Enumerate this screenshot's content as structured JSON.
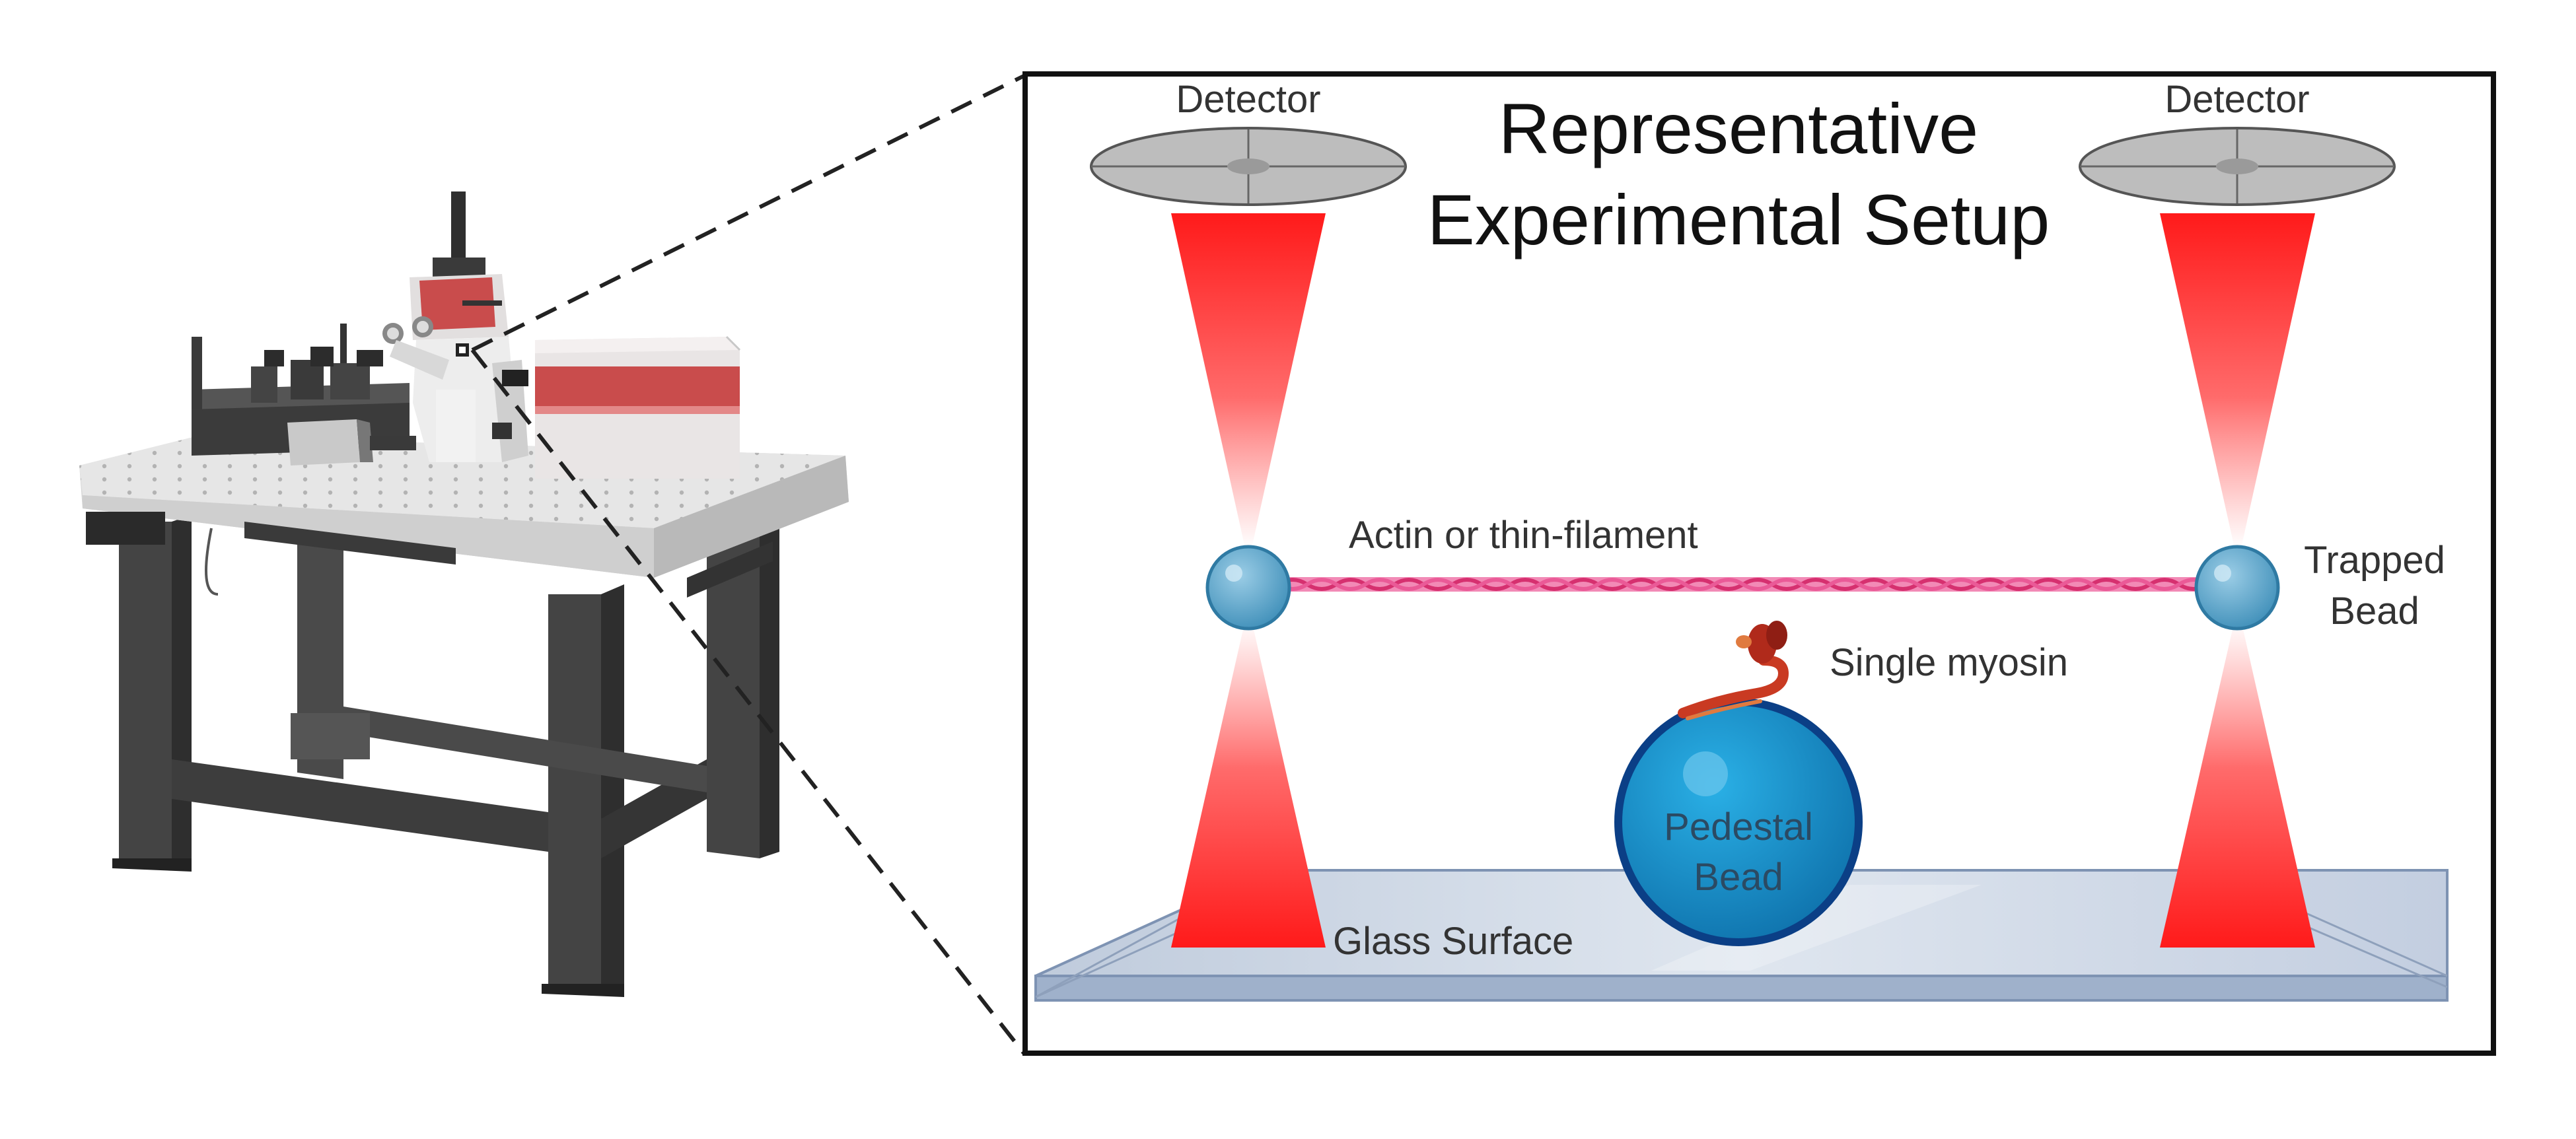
{
  "title_line1": "Representative",
  "title_line2": "Experimental Setup",
  "labels": {
    "detector_left": "Detector",
    "detector_right": "Detector",
    "actin": "Actin or thin-filament",
    "trapped_bead_line1": "Trapped",
    "trapped_bead_line2": "Bead",
    "single_myosin": "Single myosin",
    "pedestal_line1": "Pedestal",
    "pedestal_line2": "Bead",
    "glass_surface": "Glass Surface"
  },
  "colors": {
    "laser_red": "#ff1a1a",
    "bead_blue": "#5aa5cc",
    "pedestal_blue": "#1597cf",
    "filament_pink": "#e8468a",
    "myosin_red": "#b8321c",
    "table_dark": "#3d3d3d",
    "glass": "#c9d4e3"
  },
  "icons": {
    "optical_table": "optical-table-microscope-icon",
    "detector": "detector-disc-icon"
  }
}
